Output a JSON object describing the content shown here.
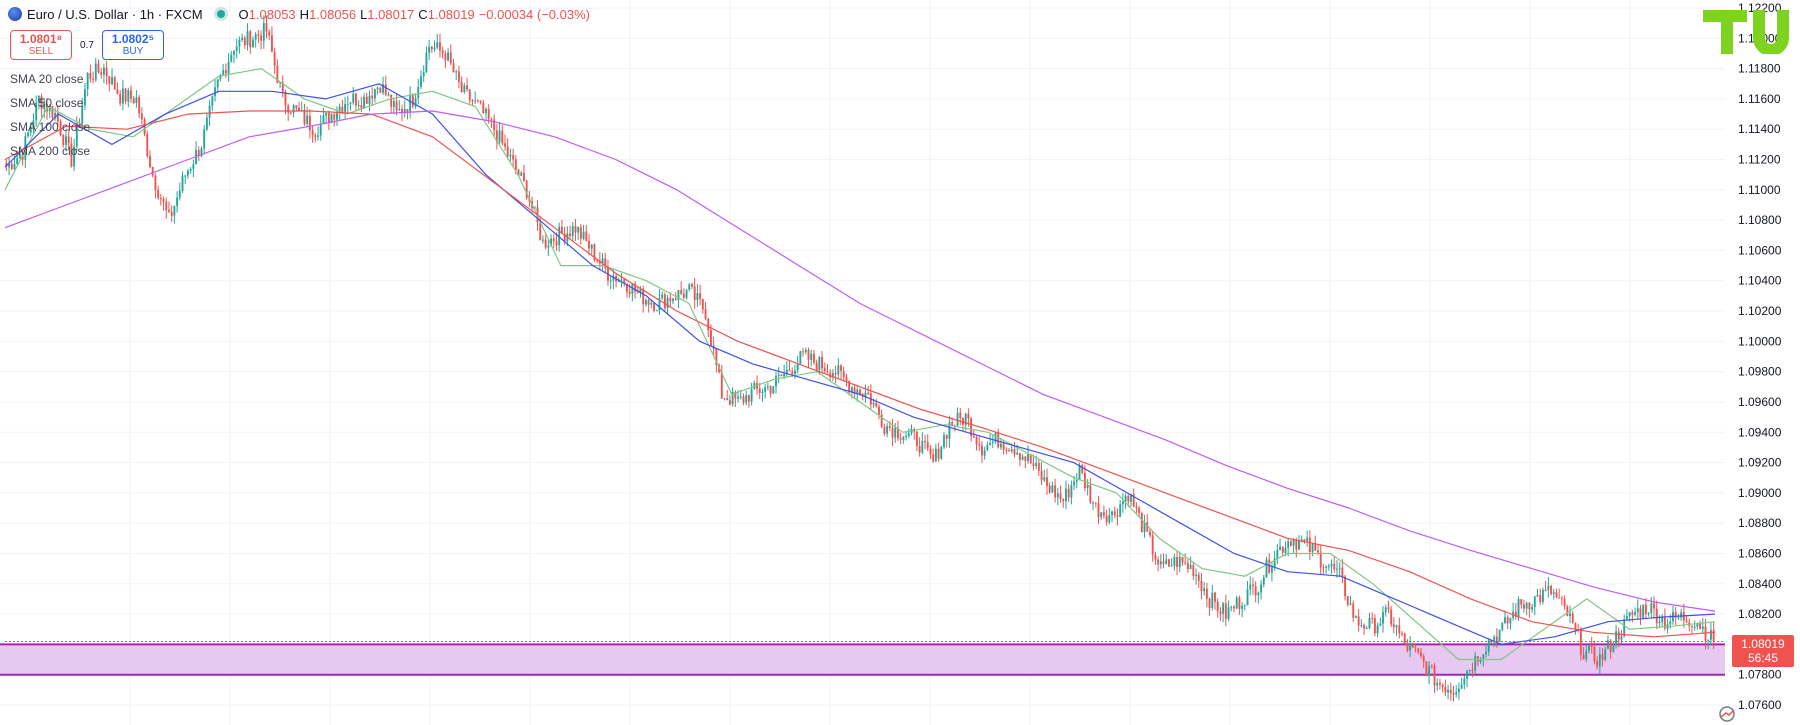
{
  "header": {
    "symbol": "Euro / U.S. Dollar · 1h · FXCM",
    "open_label": "O",
    "open": "1.08053",
    "high_label": "H",
    "high": "1.08056",
    "low_label": "L",
    "low": "1.08017",
    "close_label": "C",
    "close": "1.08019",
    "change": "−0.00034 (−0.03%)"
  },
  "trade": {
    "sell_price": "1.0801⁸",
    "sell_label": "SELL",
    "spread": "0.7",
    "buy_price": "1.0802⁵",
    "buy_label": "BUY"
  },
  "legend": [
    "SMA 20 close",
    "SMA 50 close",
    "SMA 100 close",
    "SMA 200 close"
  ],
  "price_tag": {
    "price": "1.08019",
    "countdown": "56:45"
  },
  "colors": {
    "up": "#26a69a",
    "down": "#ef5350",
    "sma20": "#81c784",
    "sma50": "#3f51e8",
    "sma100": "#ef5350",
    "sma200": "#c05cf5",
    "zone": "#e6c8f0",
    "zone_line": "#9c27b0",
    "logo": "#7ed321"
  },
  "chart_data": {
    "type": "line",
    "title": "",
    "xlabel": "",
    "ylabel": "",
    "ylim": [
      1.076,
      1.122
    ],
    "y_ticks": [
      "1.12200",
      "1.12000",
      "1.11800",
      "1.11600",
      "1.11400",
      "1.11200",
      "1.11000",
      "1.10800",
      "1.10600",
      "1.10400",
      "1.10200",
      "1.10000",
      "1.09800",
      "1.09600",
      "1.09400",
      "1.09200",
      "1.09000",
      "1.08800",
      "1.08600",
      "1.08400",
      "1.08200",
      "1.08000",
      "1.07800",
      "1.07600"
    ],
    "candles_approx_close": [
      1.1115,
      1.1125,
      1.116,
      1.115,
      1.112,
      1.1175,
      1.118,
      1.1162,
      1.116,
      1.111,
      1.108,
      1.111,
      1.113,
      1.117,
      1.1195,
      1.12,
      1.1205,
      1.116,
      1.115,
      1.114,
      1.115,
      1.116,
      1.116,
      1.117,
      1.115,
      1.116,
      1.1195,
      1.119,
      1.1165,
      1.1155,
      1.114,
      1.112,
      1.11,
      1.1065,
      1.107,
      1.1075,
      1.106,
      1.1045,
      1.104,
      1.103,
      1.1025,
      1.103,
      1.1033,
      1.102,
      1.0965,
      1.096,
      1.0967,
      1.097,
      1.098,
      1.099,
      1.0985,
      1.098,
      1.097,
      1.0965,
      1.0945,
      1.094,
      1.0935,
      1.092,
      1.0945,
      1.095,
      1.093,
      1.0935,
      1.093,
      1.092,
      1.0905,
      1.0895,
      1.0915,
      1.089,
      1.0885,
      1.09,
      1.0875,
      1.085,
      1.0855,
      1.085,
      1.083,
      1.082,
      1.083,
      1.084,
      1.086,
      1.087,
      1.0865,
      1.0855,
      1.0845,
      1.0815,
      1.0812,
      1.082,
      1.08,
      1.079,
      1.0775,
      1.077,
      1.0785,
      1.08,
      1.081,
      1.0825,
      1.083,
      1.0835,
      1.082,
      1.0795,
      1.079,
      1.0805,
      1.082,
      1.0825,
      1.0815,
      1.0818,
      1.0815,
      1.0802
    ],
    "series": [
      {
        "name": "SMA 20 close",
        "values": [
          1.11,
          1.1155,
          1.114,
          1.1135,
          1.1155,
          1.1175,
          1.118,
          1.116,
          1.115,
          1.116,
          1.1165,
          1.1155,
          1.111,
          1.105,
          1.105,
          1.104,
          1.1025,
          1.0965,
          1.0975,
          1.098,
          1.096,
          1.094,
          1.0945,
          1.094,
          1.0925,
          1.091,
          1.09,
          1.087,
          1.085,
          1.0845,
          1.086,
          1.086,
          1.084,
          1.0815,
          1.079,
          1.079,
          1.081,
          1.083,
          1.081,
          1.0812,
          1.0815
        ]
      },
      {
        "name": "SMA 50 close",
        "values": [
          1.1115,
          1.115,
          1.113,
          1.115,
          1.1165,
          1.1165,
          1.116,
          1.117,
          1.115,
          1.111,
          1.108,
          1.105,
          1.103,
          1.1,
          1.0985,
          1.0975,
          1.0965,
          1.095,
          1.094,
          1.093,
          1.092,
          1.09,
          1.088,
          1.086,
          1.0848,
          1.0845,
          1.083,
          1.0815,
          1.08,
          1.0805,
          1.0815,
          1.0818,
          1.082
        ]
      },
      {
        "name": "SMA 100 close",
        "values": [
          1.112,
          1.1142,
          1.114,
          1.115,
          1.1152,
          1.1152,
          1.115,
          1.1135,
          1.1105,
          1.1075,
          1.1045,
          1.102,
          1.1,
          1.0985,
          1.097,
          1.0955,
          1.0943,
          1.093,
          1.0915,
          1.09,
          1.0885,
          1.087,
          1.0862,
          1.0848,
          1.083,
          1.0815,
          1.0808,
          1.0805,
          1.0808
        ]
      },
      {
        "name": "SMA 200 close",
        "values": [
          1.1075,
          1.109,
          1.1105,
          1.112,
          1.1135,
          1.1142,
          1.115,
          1.1152,
          1.1145,
          1.1135,
          1.112,
          1.11,
          1.1075,
          1.105,
          1.1025,
          1.1005,
          1.0985,
          1.0965,
          1.095,
          1.0935,
          1.0918,
          1.0903,
          1.089,
          1.0875,
          1.0862,
          1.085,
          1.0838,
          1.0828,
          1.0822
        ]
      }
    ],
    "support_zone": [
      1.078,
      1.08
    ],
    "last_price": 1.08019,
    "grid": true
  }
}
